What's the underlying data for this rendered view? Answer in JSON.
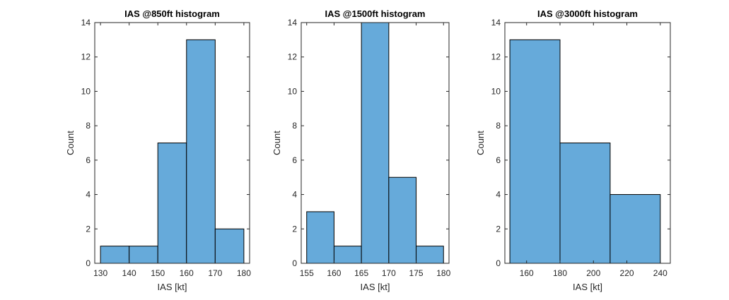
{
  "colors": {
    "bar_fill": "#66aada",
    "bar_edge": "#000000",
    "axis": "#262626",
    "background": "#ffffff"
  },
  "chart_data": [
    {
      "type": "bar",
      "title": "IAS @850ft histogram",
      "xlabel": "IAS [kt]",
      "ylabel": "Count",
      "bin_edges": [
        130,
        140,
        150,
        160,
        170,
        180
      ],
      "values": [
        1,
        1,
        7,
        13,
        2
      ],
      "xlim": [
        128,
        182
      ],
      "ylim": [
        0,
        14
      ],
      "xticks": [
        130,
        140,
        150,
        160,
        170,
        180
      ],
      "yticks": [
        0,
        2,
        4,
        6,
        8,
        10,
        12,
        14
      ],
      "grid": false
    },
    {
      "type": "bar",
      "title": "IAS @1500ft histogram",
      "xlabel": "IAS [kt]",
      "ylabel": "Count",
      "bin_edges": [
        155,
        160,
        165,
        170,
        175,
        180
      ],
      "values": [
        3,
        1,
        14,
        5,
        1
      ],
      "xlim": [
        154,
        181
      ],
      "ylim": [
        0,
        14
      ],
      "xticks": [
        155,
        160,
        165,
        170,
        175,
        180
      ],
      "yticks": [
        0,
        2,
        4,
        6,
        8,
        10,
        12,
        14
      ],
      "grid": false
    },
    {
      "type": "bar",
      "title": "IAS @3000ft histogram",
      "xlabel": "IAS [kt]",
      "ylabel": "Count",
      "bin_edges": [
        150,
        180,
        210,
        240
      ],
      "values": [
        13,
        7,
        4
      ],
      "xlim": [
        147,
        246
      ],
      "ylim": [
        0,
        14
      ],
      "xticks": [
        160,
        180,
        200,
        220,
        240
      ],
      "yticks": [
        0,
        2,
        4,
        6,
        8,
        10,
        12,
        14
      ],
      "grid": false
    }
  ]
}
